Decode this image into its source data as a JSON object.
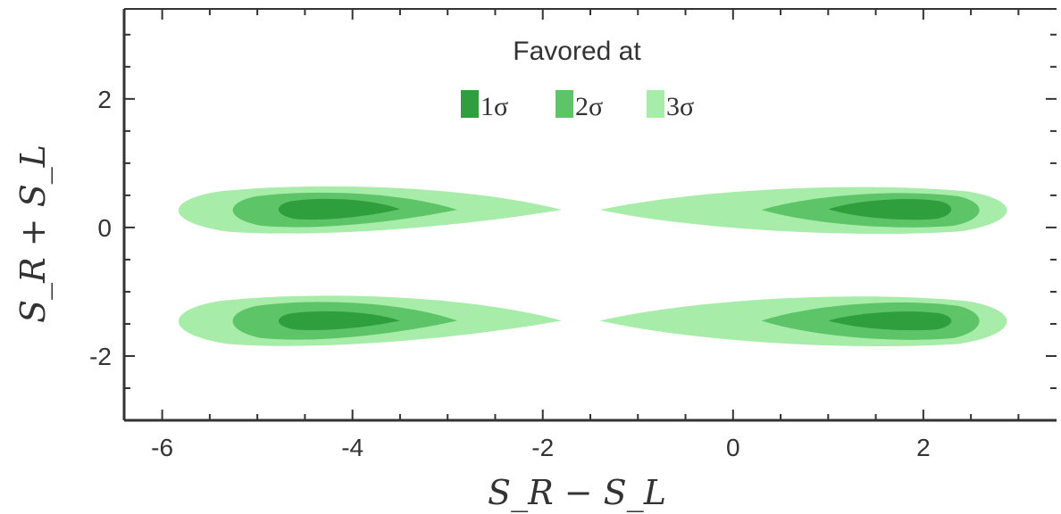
{
  "chart_data": {
    "type": "contour",
    "xlabel": "S_R − S_L",
    "ylabel": "S_R + S_L",
    "xlim": [
      -6.4,
      3.4
    ],
    "ylim": [
      -3.0,
      3.4
    ],
    "x_ticks": [
      -6,
      -4,
      -2,
      0,
      2
    ],
    "y_ticks": [
      -2,
      0,
      2
    ],
    "grid": false,
    "legend": {
      "title": "Favored at",
      "placement": "top-center",
      "entries": [
        {
          "label": "1σ",
          "color": "#2f9e3c"
        },
        {
          "label": "2σ",
          "color": "#5dc567"
        },
        {
          "label": "3σ",
          "color": "#a8ecaa"
        }
      ]
    },
    "regions": [
      {
        "name": "upper-left",
        "levels": [
          {
            "level": "3σ",
            "x_range": [
              -5.9,
              -1.8
            ],
            "y_range": [
              -0.1,
              0.65
            ]
          },
          {
            "level": "2σ",
            "x_range": [
              -5.3,
              -2.9
            ],
            "y_range": [
              0.0,
              0.55
            ]
          },
          {
            "level": "1σ",
            "x_range": [
              -4.8,
              -3.5
            ],
            "y_range": [
              0.12,
              0.45
            ]
          }
        ]
      },
      {
        "name": "upper-right",
        "levels": [
          {
            "level": "3σ",
            "x_range": [
              -1.4,
              2.9
            ],
            "y_range": [
              -0.1,
              0.65
            ]
          },
          {
            "level": "2σ",
            "x_range": [
              0.3,
              2.6
            ],
            "y_range": [
              0.0,
              0.55
            ]
          },
          {
            "level": "1σ",
            "x_range": [
              1.0,
              2.3
            ],
            "y_range": [
              0.12,
              0.45
            ]
          }
        ]
      },
      {
        "name": "lower-left",
        "levels": [
          {
            "level": "3σ",
            "x_range": [
              -5.9,
              -1.8
            ],
            "y_range": [
              -1.85,
              -1.05
            ]
          },
          {
            "level": "2σ",
            "x_range": [
              -5.3,
              -2.9
            ],
            "y_range": [
              -1.75,
              -1.15
            ]
          },
          {
            "level": "1σ",
            "x_range": [
              -4.8,
              -3.5
            ],
            "y_range": [
              -1.6,
              -1.3
            ]
          }
        ]
      },
      {
        "name": "lower-right",
        "levels": [
          {
            "level": "3σ",
            "x_range": [
              -1.4,
              2.9
            ],
            "y_range": [
              -1.85,
              -1.05
            ]
          },
          {
            "level": "2σ",
            "x_range": [
              0.3,
              2.6
            ],
            "y_range": [
              -1.75,
              -1.15
            ]
          },
          {
            "level": "1σ",
            "x_range": [
              1.0,
              2.3
            ],
            "y_range": [
              -1.6,
              -1.3
            ]
          }
        ]
      }
    ]
  }
}
